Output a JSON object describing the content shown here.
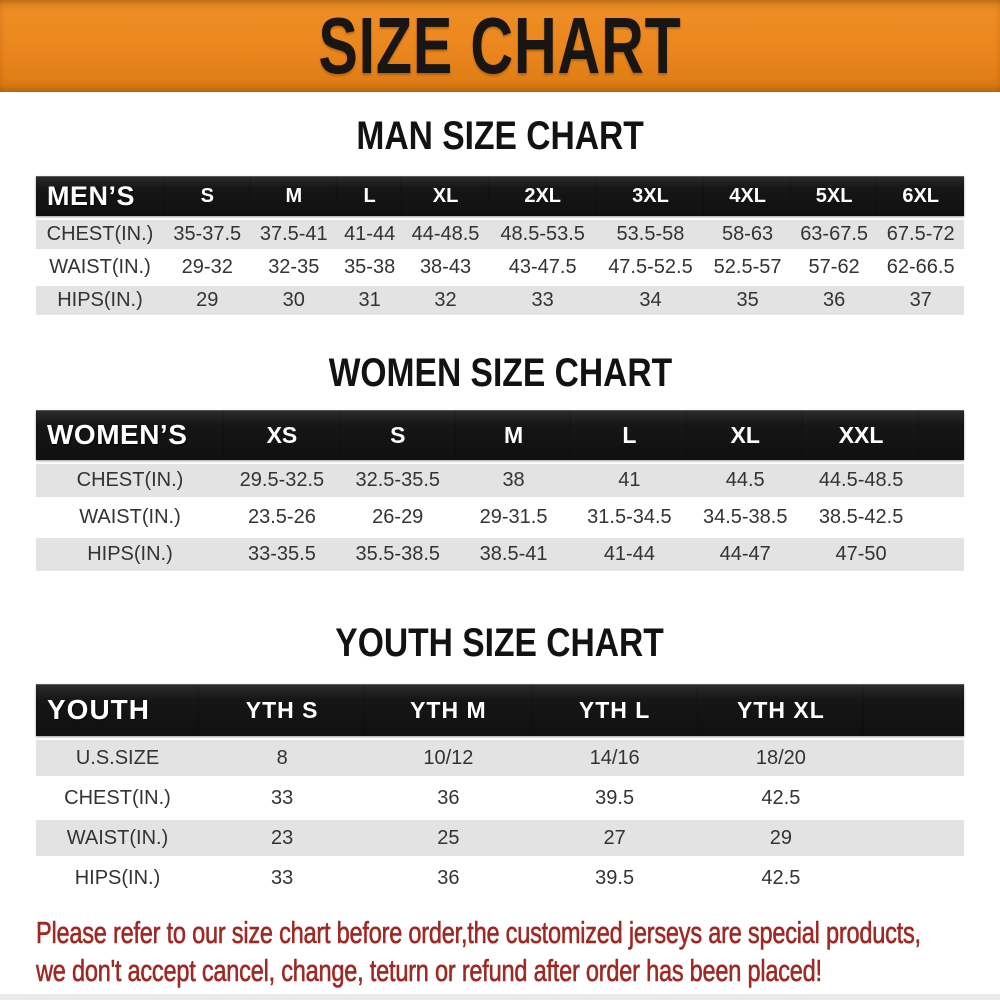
{
  "banner": {
    "title": "SIZE CHART",
    "bg_color": "#EA861D",
    "text_color": "#181512"
  },
  "colors": {
    "header_bar": "#161616",
    "row_alt": "#E3E3E3",
    "row_plain": "#FFFFFF",
    "disclaimer_red": "#9E2823"
  },
  "sections": [
    {
      "heading": "MAN SIZE CHART",
      "label": "MEN’S",
      "columns": [
        "S",
        "M",
        "L",
        "XL",
        "2XL",
        "3XL",
        "4XL",
        "5XL",
        "6XL"
      ],
      "rows": [
        {
          "label": "CHEST(IN.)",
          "values": [
            "35-37.5",
            "37.5-41",
            "41-44",
            "44-48.5",
            "48.5-53.5",
            "53.5-58",
            "58-63",
            "63-67.5",
            "67.5-72"
          ]
        },
        {
          "label": "WAIST(IN.)",
          "values": [
            "29-32",
            "32-35",
            "35-38",
            "38-43",
            "43-47.5",
            "47.5-52.5",
            "52.5-57",
            "57-62",
            "62-66.5"
          ]
        },
        {
          "label": "HIPS(IN.)",
          "values": [
            "29",
            "30",
            "31",
            "32",
            "33",
            "34",
            "35",
            "36",
            "37"
          ]
        }
      ]
    },
    {
      "heading": "WOMEN SIZE CHART",
      "label": "WOMEN’S",
      "columns": [
        "XS",
        "S",
        "M",
        "L",
        "XL",
        "XXL"
      ],
      "rows": [
        {
          "label": "CHEST(IN.)",
          "values": [
            "29.5-32.5",
            "32.5-35.5",
            "38",
            "41",
            "44.5",
            "44.5-48.5"
          ]
        },
        {
          "label": "WAIST(IN.)",
          "values": [
            "23.5-26",
            "26-29",
            "29-31.5",
            "31.5-34.5",
            "34.5-38.5",
            "38.5-42.5"
          ]
        },
        {
          "label": "HIPS(IN.)",
          "values": [
            "33-35.5",
            "35.5-38.5",
            "38.5-41",
            "41-44",
            "44-47",
            "47-50"
          ]
        }
      ]
    },
    {
      "heading": "YOUTH SIZE CHART",
      "label": "YOUTH",
      "columns": [
        "YTH S",
        "YTH M",
        "YTH L",
        "YTH XL"
      ],
      "rows": [
        {
          "label": "U.S.SIZE",
          "values": [
            "8",
            "10/12",
            "14/16",
            "18/20"
          ]
        },
        {
          "label": "CHEST(IN.)",
          "values": [
            "33",
            "36",
            "39.5",
            "42.5"
          ]
        },
        {
          "label": "WAIST(IN.)",
          "values": [
            "23",
            "25",
            "27",
            "29"
          ]
        },
        {
          "label": "HIPS(IN.)",
          "values": [
            "33",
            "36",
            "39.5",
            "42.5"
          ]
        }
      ]
    }
  ],
  "disclaimer": {
    "line1": "Please refer to our size chart before order,the customized jerseys are special products,",
    "line2": "we don't accept cancel, change, teturn or refund after order has been placed!"
  }
}
